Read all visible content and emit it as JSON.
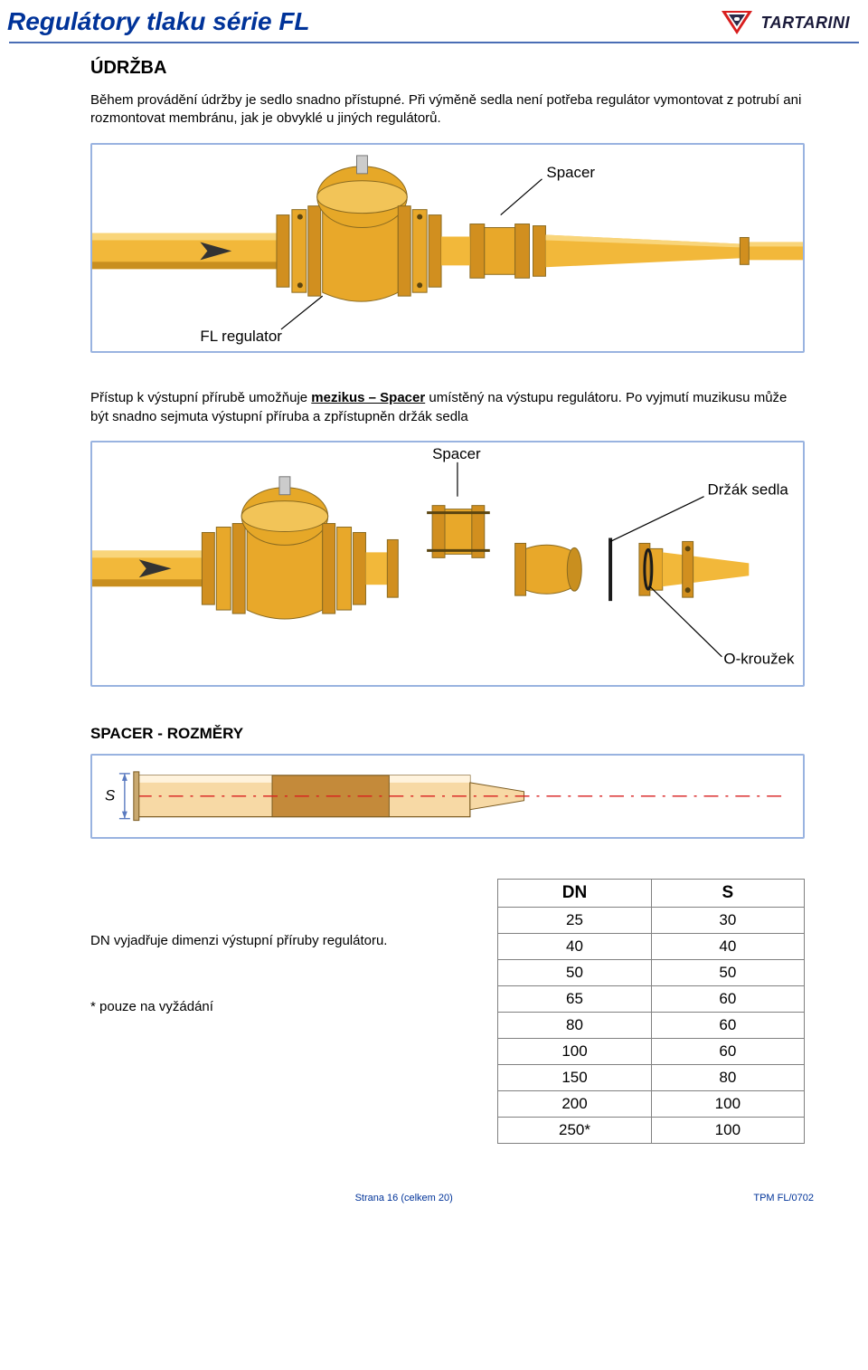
{
  "header": {
    "title": "Regulátory tlaku série FL",
    "logo_text": "TARTARINI",
    "logo_colors": {
      "red": "#d81e1e",
      "dark": "#2b2b4a",
      "white": "#ffffff"
    }
  },
  "section": {
    "title": "ÚDRŽBA",
    "para1": "Během provádění údržby je sedlo snadno přístupné.",
    "para2": "Při výměně sedla není potřeba regulátor vymontovat z potrubí ani rozmontovat membránu, jak je obvyklé u jiných regulátorů.",
    "para3_pre": "Přístup k výstupní přírubě umožňuje ",
    "para3_u": "mezikus – Spacer",
    "para3_post": " umístěný na výstupu regulátoru. Po vyjmutí muzikusu může být snadno sejmuta výstupní příruba a zpřístupněn držák sedla"
  },
  "fig1": {
    "label_spacer": "Spacer",
    "label_fl": "FL regulator",
    "colors": {
      "pipe": "#f2b83a",
      "pipe_shadow": "#c98f1f",
      "body": "#e8a82a",
      "flange": "#d18f1f",
      "bolt": "#8a6a20",
      "actuator": "#e6a828",
      "bg": "#ffffff",
      "border": "#99b3e0",
      "label": "#000000",
      "line": "#000000"
    }
  },
  "fig2": {
    "label_spacer": "Spacer",
    "label_seat": "Držák sedla",
    "label_oring": "O-kroužek",
    "colors": {
      "pipe": "#f2b83a",
      "body": "#e8a82a",
      "flange": "#d18f1f",
      "seat_line": "#1a1a1a",
      "oring_line": "#1a1a1a",
      "label": "#000000",
      "line": "#000000"
    }
  },
  "spacer_dims": {
    "title": "SPACER - ROZMĚRY",
    "note": "DN vyjadřuje dimenzi výstupní příruby regulátoru.",
    "footnote": "*  pouze na vyžádání",
    "headers": [
      "DN",
      "S"
    ],
    "rows": [
      [
        "25",
        "30"
      ],
      [
        "40",
        "40"
      ],
      [
        "50",
        "50"
      ],
      [
        "65",
        "60"
      ],
      [
        "80",
        "60"
      ],
      [
        "100",
        "60"
      ],
      [
        "150",
        "80"
      ],
      [
        "200",
        "100"
      ],
      [
        "250*",
        "100"
      ]
    ]
  },
  "fig3": {
    "label_s": "S",
    "colors": {
      "tube_light": "#f7d9a5",
      "tube_core": "#c48a3a",
      "tube_outline": "#7a5a20",
      "dash": "#d81e1e",
      "dim": "#5a7ac0",
      "border": "#99b3e0"
    }
  },
  "footer": {
    "left": "",
    "center": "Strana 16 (celkem 20)",
    "right": "TPM FL/0702"
  },
  "theme": {
    "title_color": "#003399",
    "divider_color": "#4a6db5",
    "text_color": "#000000",
    "table_border": "#808080"
  }
}
